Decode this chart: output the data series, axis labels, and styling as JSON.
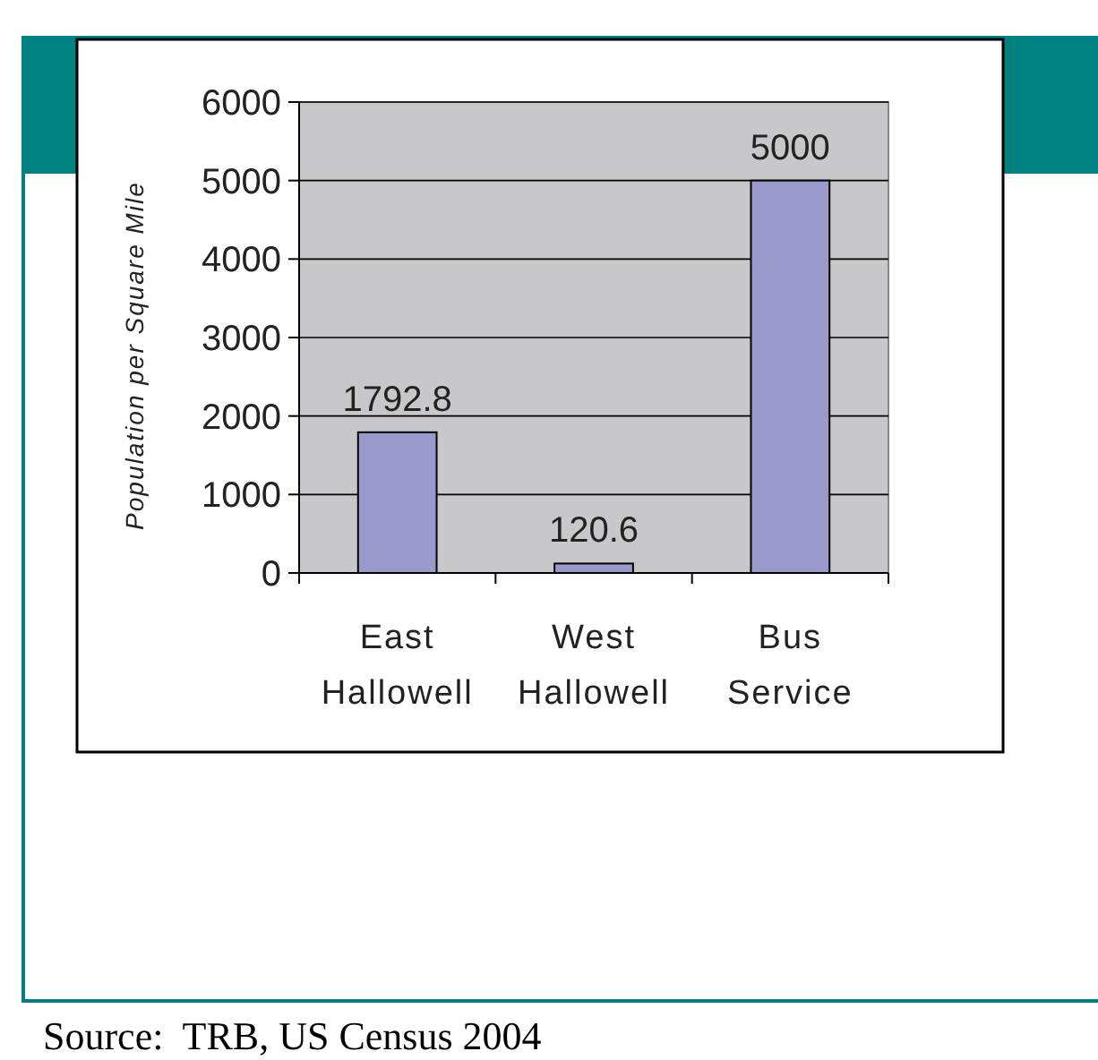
{
  "chart_data": {
    "type": "bar",
    "categories": [
      "East Hallowell",
      "West Hallowell",
      "Bus Service"
    ],
    "values": [
      1792.8,
      120.6,
      5000
    ],
    "color": "#9999cc",
    "ylabel": "Population per Square Mile",
    "ylim": [
      0,
      6000
    ],
    "yticks": [
      0,
      1000,
      2000,
      3000,
      4000,
      5000,
      6000
    ],
    "grid": "y",
    "data_labels": true,
    "annotations": [
      "Source:  TRB, US Census 2004"
    ]
  }
}
